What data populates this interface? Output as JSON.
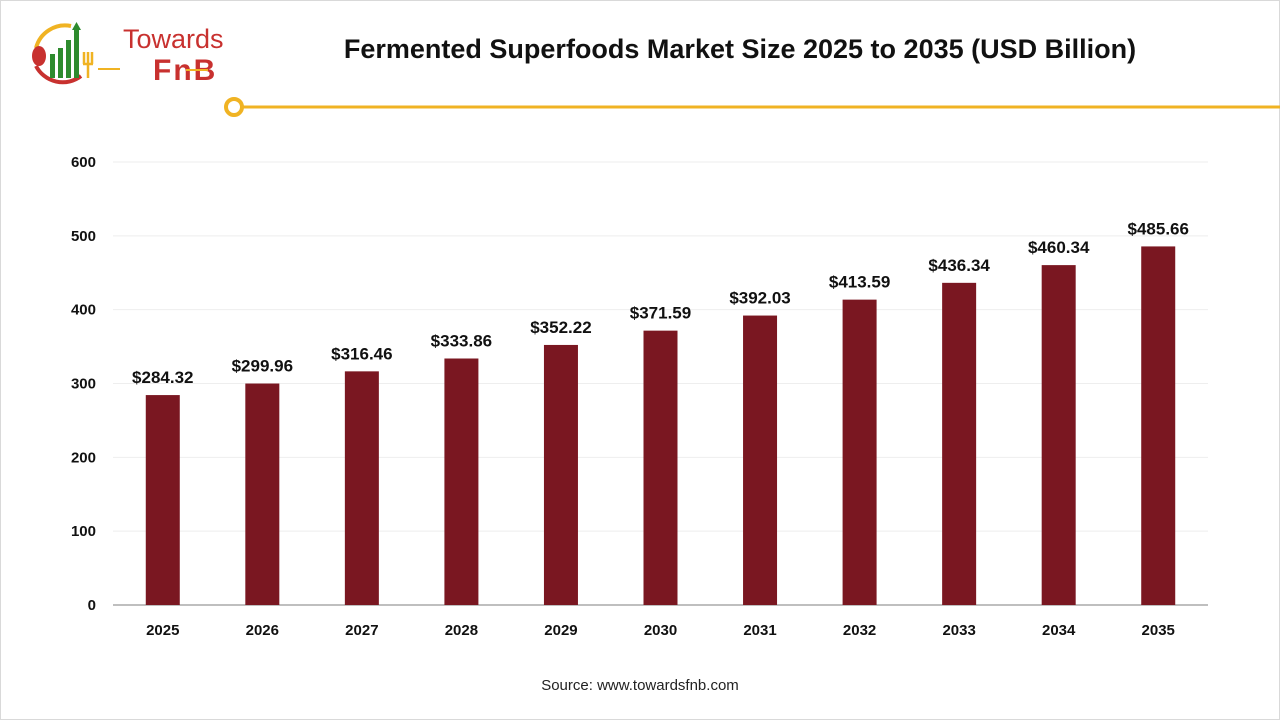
{
  "logo": {
    "line1": "Towards",
    "line2": "FnB"
  },
  "colors": {
    "bar": "#7a1721",
    "accent": "#f0b323",
    "logo_red": "#c8312f",
    "logo_green": "#2e8b2e"
  },
  "source": "Source: www.towardsfnb.com",
  "chart_data": {
    "type": "bar",
    "title": "Fermented Superfoods Market Size 2025 to 2035 (USD Billion)",
    "xlabel": "",
    "ylabel": "",
    "categories": [
      "2025",
      "2026",
      "2027",
      "2028",
      "2029",
      "2030",
      "2031",
      "2032",
      "2033",
      "2034",
      "2035"
    ],
    "values": [
      284.32,
      299.96,
      316.46,
      333.86,
      352.22,
      371.59,
      392.03,
      413.59,
      436.34,
      460.34,
      485.66
    ],
    "data_labels": [
      "$284.32",
      "$299.96",
      "$316.46",
      "$333.86",
      "$352.22",
      "$371.59",
      "$392.03",
      "$413.59",
      "$436.34",
      "$460.34",
      "$485.66"
    ],
    "ylim": [
      0,
      600
    ],
    "yticks": [
      "0",
      "100",
      "200",
      "300",
      "400",
      "500",
      "600"
    ],
    "grid": true,
    "legend": "none"
  }
}
